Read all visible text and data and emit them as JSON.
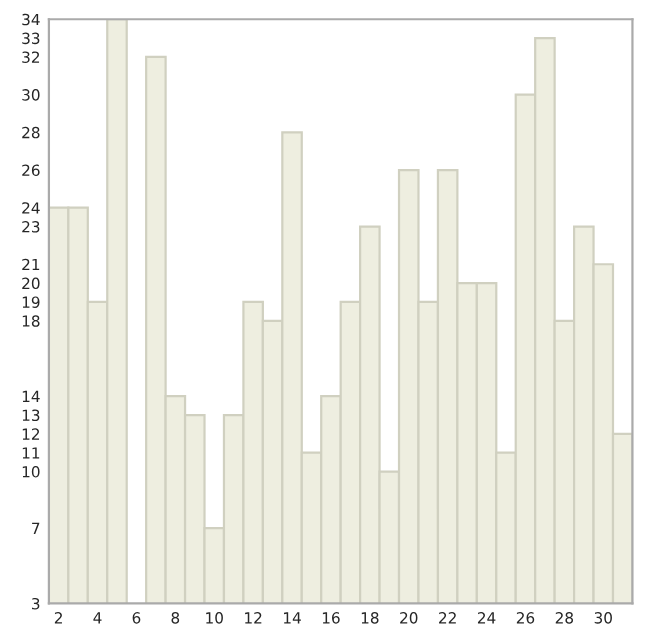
{
  "chart_data": {
    "type": "bar",
    "x": [
      2,
      3,
      4,
      5,
      6,
      7,
      8,
      9,
      10,
      11,
      12,
      13,
      14,
      15,
      16,
      17,
      18,
      19,
      20,
      21,
      22,
      23,
      24,
      25,
      26,
      27,
      28,
      29,
      30,
      31
    ],
    "values": [
      24,
      24,
      19,
      34,
      null,
      32,
      14,
      13,
      7,
      13,
      19,
      18,
      28,
      11,
      14,
      19,
      23,
      10,
      26,
      19,
      26,
      20,
      20,
      11,
      30,
      33,
      18,
      23,
      21,
      12
    ],
    "color": "#eeeee0",
    "xlim": [
      1.5,
      31.5
    ],
    "xticks": [
      2,
      4,
      6,
      8,
      10,
      12,
      14,
      16,
      18,
      20,
      22,
      24,
      26,
      28,
      30
    ],
    "ylim": [
      3,
      34
    ],
    "yticks": [
      3,
      7,
      10,
      11,
      12,
      13,
      14,
      18,
      19,
      20,
      21,
      23,
      24,
      26,
      28,
      30,
      32,
      33,
      34
    ],
    "grid": false,
    "legend": false
  }
}
